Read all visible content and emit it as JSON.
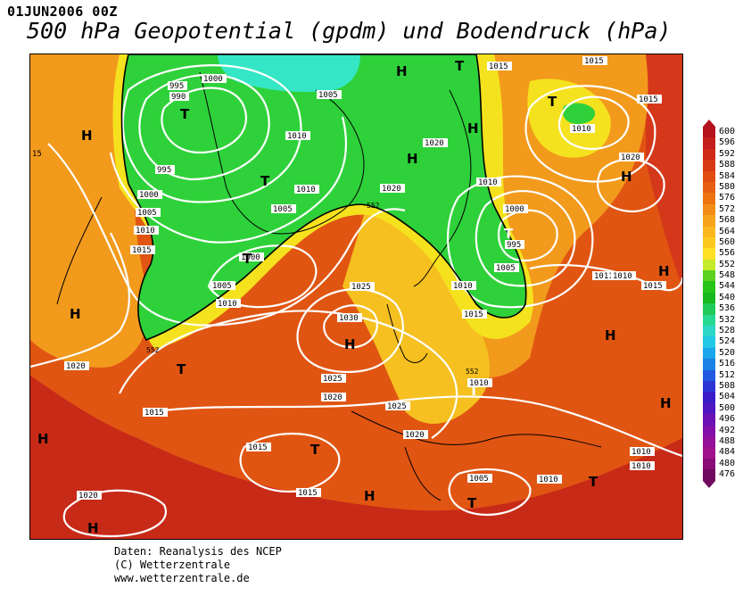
{
  "header": {
    "date": "01JUN2006 00Z",
    "title": "500 hPa Geopotential (gpdm) und Bodendruck (hPa)"
  },
  "legend": {
    "levels": [
      "600",
      "596",
      "592",
      "588",
      "584",
      "580",
      "576",
      "572",
      "568",
      "564",
      "560",
      "556",
      "552",
      "548",
      "544",
      "540",
      "536",
      "532",
      "528",
      "524",
      "520",
      "516",
      "512",
      "508",
      "504",
      "500",
      "496",
      "492",
      "488",
      "484",
      "480",
      "476"
    ],
    "colors": [
      "#b4121c",
      "#c41f1c",
      "#cf2a18",
      "#d93915",
      "#e24c12",
      "#e85f12",
      "#ee7412",
      "#f28c16",
      "#f6a31a",
      "#fab71d",
      "#fcc91f",
      "#ffe024",
      "#c6ea2c",
      "#5ad21e",
      "#28c417",
      "#17b81e",
      "#1fca58",
      "#27d891",
      "#2cd6c8",
      "#22c8e6",
      "#1aa6ea",
      "#1a82e6",
      "#2058e0",
      "#2c36d6",
      "#3a1cc8",
      "#5016c0",
      "#6a12b4",
      "#8210a8",
      "#94109a",
      "#a0128c",
      "#8a0c76",
      "#700a60"
    ]
  },
  "map": {
    "labels": {
      "pressure_values": [
        "995",
        "990",
        "1000",
        "1005",
        "1010",
        "1015",
        "1020",
        "1025",
        "1030",
        "1011"
      ],
      "gpdm_marks": [
        "552"
      ],
      "centers": [
        "H",
        "T"
      ],
      "edge_tick": "15"
    }
  },
  "footer": {
    "line1": "Daten: Reanalysis des NCEP",
    "line2": "(C) Wetterzentrale",
    "line3": "www.wetterzentrale.de"
  },
  "colors": {
    "green_low": "#2fd13a",
    "cyan_core": "#35e6c6",
    "yellow_band": "#f5e21e",
    "orange": "#f29a1c",
    "red_orange": "#e25a12",
    "deep_red": "#c82a18",
    "isobar": "#ffffff",
    "coast": "#000000"
  }
}
